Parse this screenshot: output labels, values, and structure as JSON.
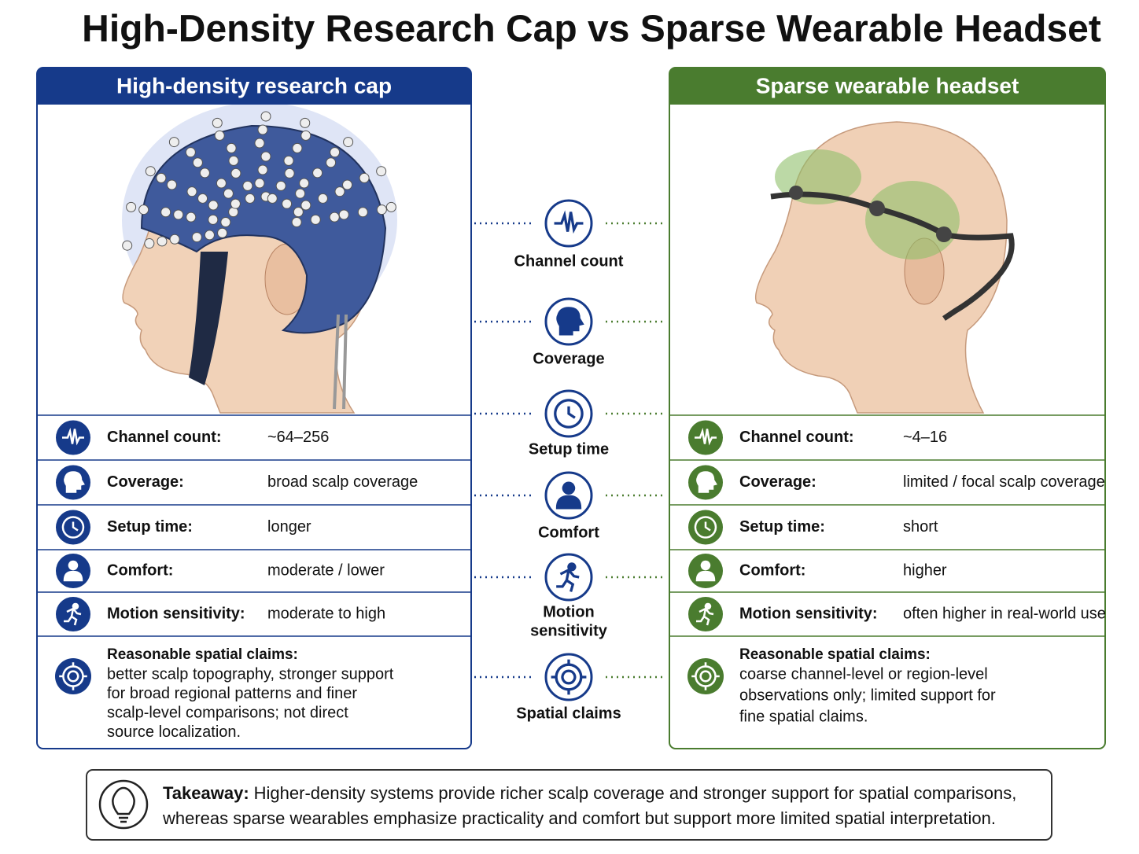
{
  "title": "High-Density Research Cap vs Sparse Wearable Headset",
  "panels": [
    {
      "header": "High-density research cap",
      "rows": [
        {
          "label": "Channel count:",
          "value": "~64–256"
        },
        {
          "label": "Coverage:",
          "value": "broad scalp coverage"
        },
        {
          "label": "Setup time:",
          "value": "longer"
        },
        {
          "label": "Comfort:",
          "value": "moderate / lower"
        },
        {
          "label": "Motion sensitivity:",
          "value": "moderate to high"
        }
      ],
      "claims": {
        "label": "Reasonable spatial claims:",
        "lines": [
          "better scalp topography, stronger support",
          "for broad regional patterns and finer",
          "scalp-level comparisons; not direct",
          "source localization."
        ]
      }
    },
    {
      "header": "Sparse wearable headset",
      "rows": [
        {
          "label": "Channel count:",
          "value": "~4–16"
        },
        {
          "label": "Coverage:",
          "value": "limited / focal scalp coverage"
        },
        {
          "label": "Setup time:",
          "value": "short"
        },
        {
          "label": "Comfort:",
          "value": "higher"
        },
        {
          "label": "Motion sensitivity:",
          "value": "often higher in real-world use"
        }
      ],
      "claims": {
        "label": "Reasonable spatial claims:",
        "lines": [
          "coarse channel-level or region-level",
          "observations only; limited support for",
          "fine spatial claims."
        ]
      }
    }
  ],
  "center": [
    {
      "lines": [
        "Channel count"
      ]
    },
    {
      "lines": [
        "Coverage"
      ]
    },
    {
      "lines": [
        "Setup time"
      ]
    },
    {
      "lines": [
        "Comfort"
      ]
    },
    {
      "lines": [
        "Motion",
        "sensitivity"
      ]
    },
    {
      "lines": [
        "Spatial claims"
      ]
    }
  ],
  "takeaway": {
    "label": "Takeaway:",
    "lines": [
      "Higher-density systems provide richer scalp coverage and stronger support for spatial comparisons,",
      "whereas sparse wearables emphasize practicality and comfort but support more limited spatial interpretation."
    ]
  }
}
